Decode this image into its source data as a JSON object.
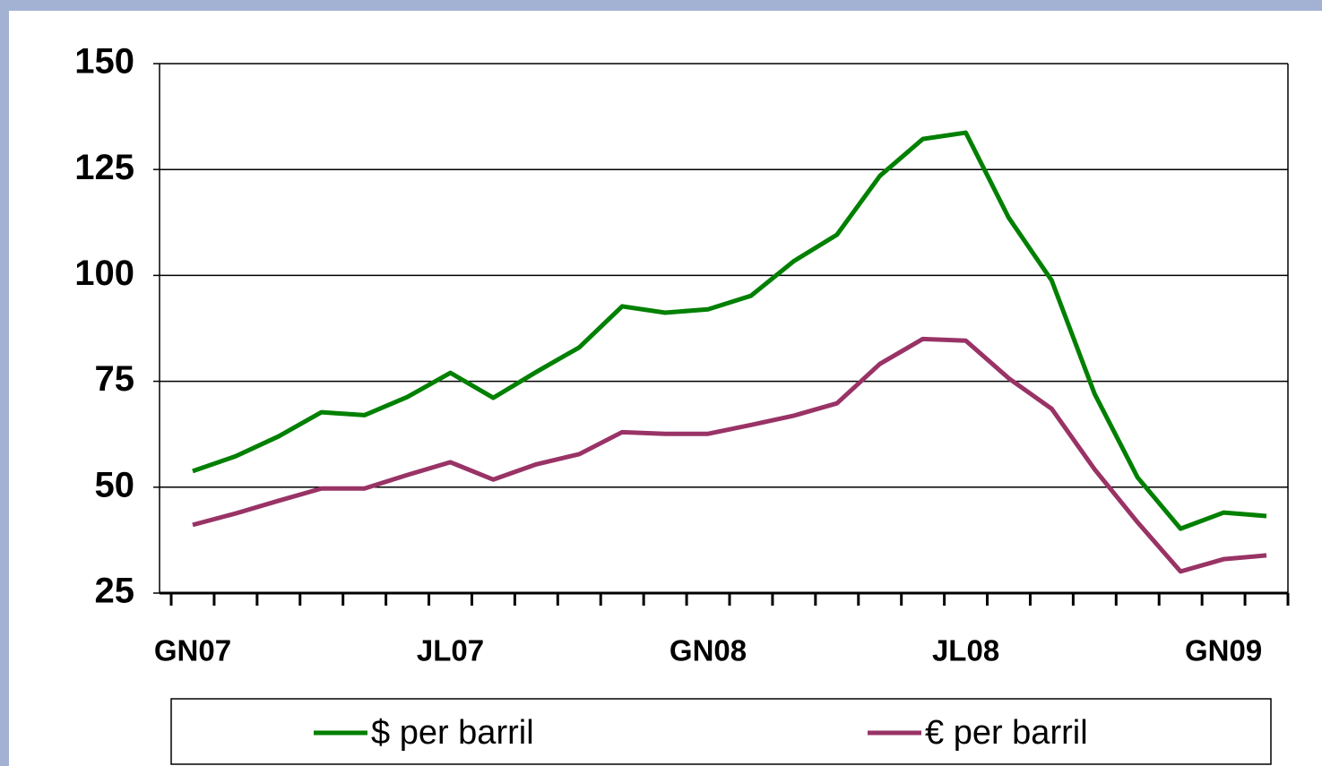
{
  "chart_data": {
    "type": "line",
    "categories": [
      "GN07",
      null,
      null,
      null,
      null,
      null,
      "JL07",
      null,
      null,
      null,
      null,
      null,
      "GN08",
      null,
      null,
      null,
      null,
      null,
      "JL08",
      null,
      null,
      null,
      null,
      null,
      "GN09",
      null
    ],
    "series": [
      {
        "name": "$ per barril",
        "color": "#008000",
        "values": [
          53.8,
          57.3,
          62,
          67.7,
          67,
          71.3,
          77,
          71.1,
          77.2,
          83,
          92.7,
          91.2,
          92,
          95.2,
          103.4,
          109.6,
          123.5,
          132.2,
          133.7,
          113.6,
          98.8,
          72,
          52.3,
          40.2,
          44,
          43.2
        ]
      },
      {
        "name": "€ per barril",
        "color": "#993366",
        "values": [
          41.1,
          43.8,
          46.8,
          49.7,
          49.7,
          52.9,
          55.9,
          51.8,
          55.4,
          57.8,
          63,
          62.6,
          62.6,
          64.7,
          66.9,
          69.8,
          79.1,
          85,
          84.6,
          75.7,
          68.5,
          54.2,
          41.7,
          30.1,
          33,
          33.9
        ]
      }
    ],
    "ylim": [
      25,
      150
    ],
    "yticks": [
      25,
      50,
      75,
      100,
      125,
      150
    ],
    "grid": true
  }
}
